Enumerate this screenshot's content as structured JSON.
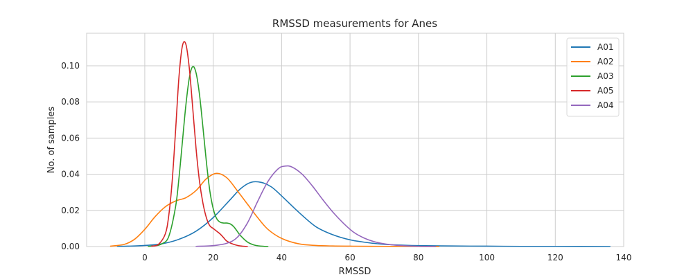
{
  "chart_data": {
    "type": "line",
    "title": "RMSSD measurements for Anes",
    "xlabel": "RMSSD",
    "ylabel": "No. of samples",
    "xlim": [
      -17,
      140
    ],
    "ylim": [
      0,
      0.118
    ],
    "x_ticks": [
      0,
      20,
      40,
      60,
      80,
      100,
      120,
      140
    ],
    "y_ticks": [
      0.0,
      0.02,
      0.04,
      0.06,
      0.08,
      0.1
    ],
    "y_tick_labels": [
      "0.00",
      "0.02",
      "0.04",
      "0.06",
      "0.08",
      "0.10"
    ],
    "grid": true,
    "legend_position": "top-right",
    "series": [
      {
        "name": "A01",
        "color": "#1f77b4",
        "x": [
          -8,
          -5,
          0,
          5,
          10,
          15,
          20,
          25,
          28,
          31,
          34,
          37,
          40,
          45,
          50,
          55,
          60,
          65,
          70,
          75,
          80,
          90,
          100,
          110,
          120,
          136
        ],
        "y": [
          0.0001,
          0.0002,
          0.0006,
          0.0015,
          0.004,
          0.0085,
          0.016,
          0.026,
          0.032,
          0.0355,
          0.0355,
          0.033,
          0.028,
          0.019,
          0.011,
          0.0065,
          0.0037,
          0.0022,
          0.0012,
          0.0008,
          0.0005,
          0.0003,
          0.0002,
          0.0001,
          0.0001,
          0.0
        ]
      },
      {
        "name": "A02",
        "color": "#ff7f0e",
        "x": [
          -10,
          -6,
          -3,
          0,
          3,
          6,
          9,
          12,
          15,
          18,
          21,
          24,
          27,
          30,
          33,
          36,
          40,
          45,
          50,
          55,
          60,
          70,
          80,
          86
        ],
        "y": [
          0.0002,
          0.0012,
          0.004,
          0.0095,
          0.0165,
          0.022,
          0.0252,
          0.027,
          0.031,
          0.0375,
          0.0405,
          0.038,
          0.031,
          0.0235,
          0.016,
          0.0095,
          0.0045,
          0.0015,
          0.0006,
          0.0003,
          0.0002,
          0.0001,
          0.0,
          0.0
        ]
      },
      {
        "name": "A03",
        "color": "#2ca02c",
        "x": [
          1,
          3,
          5,
          7,
          9,
          10,
          11,
          12,
          13,
          14,
          15,
          16,
          17,
          18,
          19,
          20,
          21,
          22,
          23,
          24,
          25,
          26,
          27,
          28,
          30,
          32,
          34,
          36
        ],
        "y": [
          0.0001,
          0.0004,
          0.0015,
          0.0055,
          0.022,
          0.038,
          0.058,
          0.078,
          0.093,
          0.0995,
          0.096,
          0.084,
          0.066,
          0.047,
          0.031,
          0.021,
          0.0155,
          0.0135,
          0.013,
          0.013,
          0.0125,
          0.011,
          0.0085,
          0.006,
          0.0025,
          0.0008,
          0.0002,
          0.0
        ]
      },
      {
        "name": "A05",
        "color": "#d62728",
        "x": [
          2,
          4,
          6,
          7,
          8,
          9,
          10,
          11,
          12,
          13,
          14,
          15,
          16,
          17,
          18,
          19,
          20,
          21,
          22,
          23,
          24,
          26,
          28,
          30
        ],
        "y": [
          0.0002,
          0.0012,
          0.007,
          0.017,
          0.036,
          0.064,
          0.094,
          0.111,
          0.112,
          0.099,
          0.077,
          0.054,
          0.036,
          0.024,
          0.016,
          0.0115,
          0.01,
          0.0085,
          0.007,
          0.005,
          0.003,
          0.0012,
          0.0003,
          0.0
        ]
      },
      {
        "name": "A04",
        "color": "#9467bd",
        "x": [
          15,
          20,
          24,
          27,
          30,
          33,
          36,
          39,
          41,
          43,
          46,
          49,
          52,
          55,
          58,
          61,
          64,
          67,
          70,
          73,
          76,
          80,
          85
        ],
        "y": [
          0.0001,
          0.0005,
          0.0018,
          0.005,
          0.013,
          0.025,
          0.036,
          0.043,
          0.0445,
          0.044,
          0.04,
          0.0335,
          0.026,
          0.019,
          0.013,
          0.008,
          0.0048,
          0.0027,
          0.0015,
          0.0008,
          0.0004,
          0.0001,
          0.0
        ]
      }
    ]
  }
}
